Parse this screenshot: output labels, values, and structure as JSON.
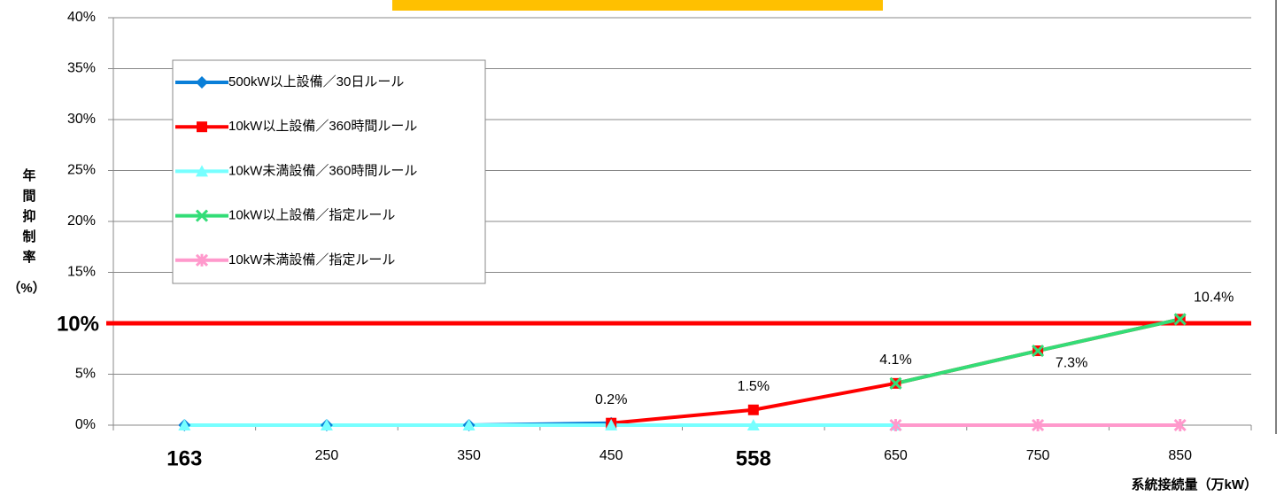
{
  "chart_data": {
    "type": "line",
    "categories": [
      "163",
      "250",
      "350",
      "450",
      "558",
      "650",
      "750",
      "850"
    ],
    "highlighted_categories": [
      0,
      4
    ],
    "highlight_color": "#ff0000",
    "series": [
      {
        "name": "500kW以上設備／30日ルール",
        "color": "#0a7fd8",
        "marker": "diamond",
        "values": [
          0,
          0,
          0,
          0.2,
          null,
          null,
          null,
          null
        ]
      },
      {
        "name": "10kW以上設備／360時間ルール",
        "color": "#ff0000",
        "marker": "square",
        "values": [
          null,
          null,
          null,
          0.2,
          1.5,
          4.1,
          7.3,
          10.4
        ],
        "value_labels": [
          null,
          null,
          null,
          "0.2%",
          "1.5%",
          "4.1%",
          "7.3%",
          "10.4%"
        ]
      },
      {
        "name": "10kW未満設備／360時間ルール",
        "color": "#77ffff",
        "marker": "triangle",
        "values": [
          0,
          0,
          0,
          0,
          0,
          0,
          null,
          null
        ]
      },
      {
        "name": "10kW以上設備／指定ルール",
        "color": "#33dd77",
        "marker": "x",
        "values": [
          null,
          null,
          null,
          null,
          null,
          4.1,
          7.3,
          10.4
        ]
      },
      {
        "name": "10kW未満設備／指定ルール",
        "color": "#ff99cc",
        "marker": "star",
        "values": [
          null,
          null,
          null,
          null,
          null,
          0,
          0,
          0
        ]
      }
    ],
    "ylim": [
      0,
      40
    ],
    "yticks": [
      {
        "value": 0,
        "label": "0%"
      },
      {
        "value": 5,
        "label": "5%"
      },
      {
        "value": 10,
        "label": "10%"
      },
      {
        "value": 15,
        "label": "15%"
      },
      {
        "value": 20,
        "label": "20%"
      },
      {
        "value": 25,
        "label": "25%"
      },
      {
        "value": 30,
        "label": "30%"
      },
      {
        "value": 35,
        "label": "35%"
      },
      {
        "value": 40,
        "label": "40%"
      }
    ],
    "grid": true,
    "threshold": {
      "value": 10,
      "label": "10%",
      "color": "#ff0000"
    },
    "y_label": "年間抑制率",
    "y_label_unit": "（%）",
    "x_label": "系統接続量（万kW）",
    "legend": "upper left"
  }
}
